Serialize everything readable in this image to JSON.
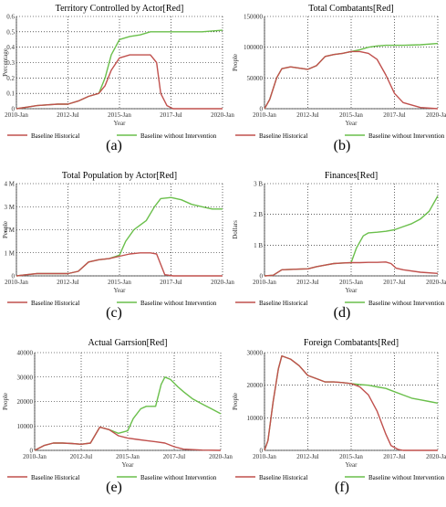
{
  "colors": {
    "historical": "#c0504d",
    "intervention": "#6abf4b",
    "axis": "#333333",
    "grid": "#000000"
  },
  "legend": {
    "historical": "Baseline Historical",
    "intervention": "Baseline without Intervention"
  },
  "chart_data": [
    {
      "type": "line",
      "panel_label": "(a)",
      "title": "Territory Controlled by Actor[Red]",
      "xlabel": "Year",
      "ylabel": "Percentage",
      "x_ticks": [
        "2010-Jan",
        "2012-Jul",
        "2015-Jan",
        "2017-Jul",
        "2020-Jan"
      ],
      "y_ticks": [
        {
          "v": 0,
          "t": "0"
        },
        {
          "v": 0.1,
          "t": "0.1"
        },
        {
          "v": 0.2,
          "t": "0.2"
        },
        {
          "v": 0.3,
          "t": "0.3"
        },
        {
          "v": 0.4,
          "t": "0.4"
        },
        {
          "v": 0.5,
          "t": "0.5"
        },
        {
          "v": 0.6,
          "t": "0.6"
        }
      ],
      "ylim": [
        0,
        0.6
      ],
      "xlim": [
        2010,
        2020
      ],
      "series": [
        {
          "name": "Baseline Historical",
          "key": "historical",
          "x": [
            2010,
            2010.5,
            2011,
            2012,
            2012.5,
            2013,
            2013.5,
            2014,
            2014.3,
            2014.6,
            2015,
            2015.5,
            2016,
            2016.5,
            2016.8,
            2017,
            2017.3,
            2017.6,
            2018,
            2019,
            2020
          ],
          "y": [
            0,
            0.01,
            0.02,
            0.03,
            0.03,
            0.05,
            0.08,
            0.1,
            0.15,
            0.25,
            0.33,
            0.35,
            0.35,
            0.35,
            0.3,
            0.1,
            0.02,
            0,
            0,
            0,
            0
          ]
        },
        {
          "name": "Baseline without Intervention",
          "key": "intervention",
          "x": [
            2010,
            2010.5,
            2011,
            2012,
            2012.5,
            2013,
            2013.5,
            2014,
            2014.3,
            2014.6,
            2015,
            2015.5,
            2016,
            2016.5,
            2017,
            2018,
            2019,
            2020
          ],
          "y": [
            0,
            0.01,
            0.02,
            0.03,
            0.03,
            0.05,
            0.08,
            0.1,
            0.2,
            0.35,
            0.45,
            0.47,
            0.48,
            0.5,
            0.5,
            0.5,
            0.5,
            0.51
          ]
        }
      ]
    },
    {
      "type": "line",
      "panel_label": "(b)",
      "title": "Total Combatants[Red]",
      "xlabel": "Year",
      "ylabel": "People",
      "x_ticks": [
        "2010-Jan",
        "2012-Jul",
        "2015-Jan",
        "2017-Jul",
        "2020-Jan"
      ],
      "y_ticks": [
        {
          "v": 0,
          "t": "0"
        },
        {
          "v": 50000,
          "t": "50000"
        },
        {
          "v": 100000,
          "t": "100000"
        },
        {
          "v": 150000,
          "t": "150000"
        }
      ],
      "ylim": [
        0,
        150000
      ],
      "xlim": [
        2010,
        2020
      ],
      "series": [
        {
          "name": "Baseline Historical",
          "key": "historical",
          "x": [
            2010,
            2010.3,
            2010.7,
            2011,
            2011.5,
            2012,
            2012.5,
            2013,
            2013.5,
            2014,
            2014.5,
            2015,
            2015.5,
            2016,
            2016.5,
            2017,
            2017.5,
            2018,
            2019,
            2020
          ],
          "y": [
            0,
            15000,
            50000,
            65000,
            68000,
            66000,
            64000,
            70000,
            85000,
            88000,
            90000,
            93000,
            93000,
            90000,
            80000,
            55000,
            25000,
            10000,
            2000,
            0
          ]
        },
        {
          "name": "Baseline without Intervention",
          "key": "intervention",
          "x": [
            2010,
            2010.3,
            2010.7,
            2011,
            2011.5,
            2012,
            2012.5,
            2013,
            2013.5,
            2014,
            2014.5,
            2015,
            2015.5,
            2016,
            2016.5,
            2017,
            2018,
            2019,
            2020
          ],
          "y": [
            0,
            15000,
            50000,
            65000,
            68000,
            66000,
            64000,
            70000,
            85000,
            88000,
            90000,
            93000,
            96000,
            100000,
            102000,
            103000,
            103000,
            104000,
            106000
          ]
        }
      ]
    },
    {
      "type": "line",
      "panel_label": "(c)",
      "title": "Total Population by Actor[Red]",
      "xlabel": "Year",
      "ylabel": "People",
      "x_ticks": [
        "2010-Jan",
        "2012-Jul",
        "2015-Jan",
        "2017-Jul",
        "2020-Jan"
      ],
      "y_ticks": [
        {
          "v": 0,
          "t": "0"
        },
        {
          "v": 1000000,
          "t": "1 M"
        },
        {
          "v": 2000000,
          "t": "2 M"
        },
        {
          "v": 3000000,
          "t": "3 M"
        },
        {
          "v": 4000000,
          "t": "4 M"
        }
      ],
      "ylim": [
        0,
        4000000
      ],
      "xlim": [
        2010,
        2020
      ],
      "series": [
        {
          "name": "Baseline Historical",
          "key": "historical",
          "x": [
            2010,
            2010.5,
            2011,
            2012,
            2012.5,
            2013,
            2013.5,
            2014,
            2014.5,
            2015,
            2015.5,
            2016,
            2016.5,
            2016.8,
            2017,
            2017.2,
            2017.6,
            2018,
            2019,
            2020
          ],
          "y": [
            0,
            50000,
            100000,
            100000,
            100000,
            200000,
            600000,
            700000,
            750000,
            850000,
            950000,
            1000000,
            1000000,
            950000,
            500000,
            50000,
            0,
            0,
            0,
            0
          ]
        },
        {
          "name": "Baseline without Intervention",
          "key": "intervention",
          "x": [
            2010,
            2010.5,
            2011,
            2012,
            2012.5,
            2013,
            2013.5,
            2014,
            2014.5,
            2015,
            2015.3,
            2015.7,
            2016,
            2016.3,
            2016.7,
            2017,
            2017.5,
            2018,
            2018.5,
            2019,
            2019.5,
            2020
          ],
          "y": [
            0,
            50000,
            100000,
            100000,
            100000,
            200000,
            600000,
            700000,
            750000,
            900000,
            1500000,
            2000000,
            2200000,
            2400000,
            3000000,
            3350000,
            3400000,
            3300000,
            3100000,
            3000000,
            2900000,
            2900000
          ]
        }
      ]
    },
    {
      "type": "line",
      "panel_label": "(d)",
      "title": "Finances[Red]",
      "xlabel": "Year",
      "ylabel": "Dollars",
      "x_ticks": [
        "2010-Jan",
        "2012-Jul",
        "2015-Jan",
        "2017-Jul",
        "2020-Jan"
      ],
      "y_ticks": [
        {
          "v": 0,
          "t": "0"
        },
        {
          "v": 1000000000,
          "t": "1 B"
        },
        {
          "v": 2000000000,
          "t": "2 B"
        },
        {
          "v": 3000000000,
          "t": "3 B"
        }
      ],
      "ylim": [
        0,
        3000000000
      ],
      "xlim": [
        2010,
        2020
      ],
      "series": [
        {
          "name": "Baseline Historical",
          "key": "historical",
          "x": [
            2010,
            2010.5,
            2011,
            2012,
            2012.5,
            2013,
            2013.5,
            2014,
            2014.5,
            2015,
            2015.5,
            2016,
            2016.5,
            2017,
            2017.3,
            2017.6,
            2018,
            2019,
            2020
          ],
          "y": [
            0,
            20000000,
            200000000,
            220000000,
            230000000,
            300000000,
            350000000,
            400000000,
            420000000,
            430000000,
            430000000,
            440000000,
            440000000,
            450000000,
            400000000,
            250000000,
            200000000,
            120000000,
            80000000
          ]
        },
        {
          "name": "Baseline without Intervention",
          "key": "intervention",
          "x": [
            2010,
            2010.5,
            2011,
            2012,
            2012.5,
            2013,
            2013.5,
            2014,
            2014.5,
            2015,
            2015.3,
            2015.7,
            2016,
            2016.5,
            2017,
            2017.5,
            2018,
            2018.5,
            2019,
            2019.5,
            2020
          ],
          "y": [
            0,
            20000000,
            200000000,
            220000000,
            230000000,
            300000000,
            350000000,
            400000000,
            420000000,
            430000000,
            900000000,
            1300000000,
            1400000000,
            1420000000,
            1450000000,
            1500000000,
            1600000000,
            1700000000,
            1850000000,
            2100000000,
            2600000000
          ]
        }
      ]
    },
    {
      "type": "line",
      "panel_label": "(e)",
      "title": "Actual Garrsion[Red]",
      "xlabel": "Year",
      "ylabel": "People",
      "x_ticks": [
        "2010-Jan",
        "2012-Jul",
        "2015-Jan",
        "2017-Jul",
        "2020-Jan"
      ],
      "y_ticks": [
        {
          "v": 0,
          "t": "0"
        },
        {
          "v": 10000,
          "t": "10000"
        },
        {
          "v": 20000,
          "t": "20000"
        },
        {
          "v": 30000,
          "t": "30000"
        },
        {
          "v": 40000,
          "t": "40000"
        }
      ],
      "ylim": [
        0,
        40000
      ],
      "xlim": [
        2010,
        2020
      ],
      "series": [
        {
          "name": "Baseline Historical",
          "key": "historical",
          "x": [
            2010,
            2010.5,
            2011,
            2011.5,
            2012,
            2012.5,
            2013,
            2013.5,
            2014,
            2014.5,
            2015,
            2015.5,
            2016,
            2016.5,
            2017,
            2017.5,
            2018,
            2019,
            2020
          ],
          "y": [
            0,
            2000,
            3000,
            3000,
            2800,
            2500,
            3000,
            9500,
            8500,
            6000,
            5000,
            4500,
            4000,
            3500,
            3000,
            1500,
            500,
            100,
            0
          ]
        },
        {
          "name": "Baseline without Intervention",
          "key": "intervention",
          "x": [
            2010,
            2010.5,
            2011,
            2011.5,
            2012,
            2012.5,
            2013,
            2013.5,
            2014,
            2014.5,
            2015,
            2015.3,
            2015.7,
            2016,
            2016.5,
            2016.8,
            2017,
            2017.3,
            2017.7,
            2018,
            2018.5,
            2019,
            2019.5,
            2020
          ],
          "y": [
            0,
            2000,
            3000,
            3000,
            2800,
            2500,
            3000,
            9500,
            8500,
            7000,
            8000,
            13000,
            17000,
            18000,
            18000,
            27000,
            30000,
            29000,
            26000,
            24000,
            21000,
            19000,
            17000,
            15000
          ]
        }
      ]
    },
    {
      "type": "line",
      "panel_label": "(f)",
      "title": "Foreign Combatants[Red]",
      "xlabel": "Year",
      "ylabel": "People",
      "x_ticks": [
        "2010-Jan",
        "2012-Jul",
        "2015-Jan",
        "2017-Jul",
        "2020-Jan"
      ],
      "y_ticks": [
        {
          "v": 0,
          "t": "0"
        },
        {
          "v": 10000,
          "t": "10000"
        },
        {
          "v": 20000,
          "t": "20000"
        },
        {
          "v": 30000,
          "t": "30000"
        }
      ],
      "ylim": [
        0,
        30000
      ],
      "xlim": [
        2010,
        2020
      ],
      "series": [
        {
          "name": "Baseline Historical",
          "key": "historical",
          "x": [
            2010,
            2010.2,
            2010.5,
            2010.8,
            2011,
            2011.5,
            2012,
            2012.5,
            2013,
            2013.5,
            2014,
            2014.5,
            2015,
            2015.5,
            2016,
            2016.5,
            2017,
            2017.3,
            2017.7,
            2018,
            2019,
            2020
          ],
          "y": [
            0,
            3000,
            15000,
            25000,
            29000,
            28000,
            26000,
            23000,
            22000,
            21000,
            21000,
            20800,
            20500,
            19500,
            17000,
            12000,
            5000,
            1500,
            300,
            0,
            0,
            0
          ]
        },
        {
          "name": "Baseline without Intervention",
          "key": "intervention",
          "x": [
            2010,
            2010.2,
            2010.5,
            2010.8,
            2011,
            2011.5,
            2012,
            2012.5,
            2013,
            2013.5,
            2014,
            2014.5,
            2015,
            2015.5,
            2016,
            2016.5,
            2017,
            2017.5,
            2018,
            2018.5,
            2019,
            2019.5,
            2020
          ],
          "y": [
            0,
            3000,
            15000,
            25000,
            29000,
            28000,
            26000,
            23000,
            22000,
            21000,
            21000,
            20800,
            20500,
            20200,
            20000,
            19500,
            19000,
            18000,
            17000,
            16000,
            15500,
            15000,
            14500
          ]
        }
      ]
    }
  ]
}
